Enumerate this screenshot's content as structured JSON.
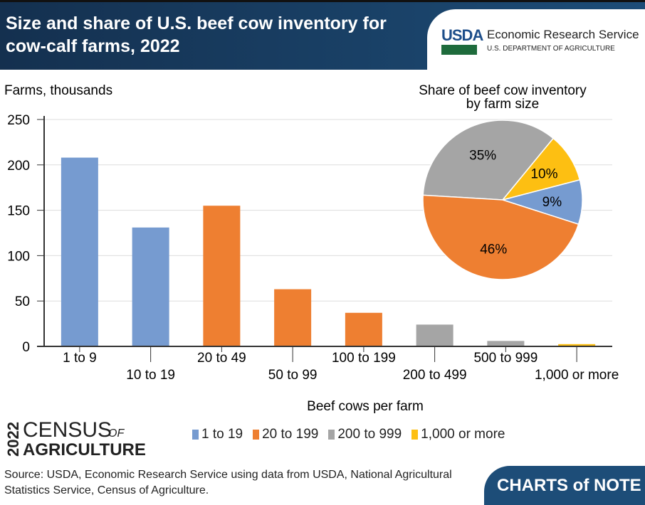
{
  "header": {
    "title": "Size and share of U.S. beef cow inventory for cow-calf farms, 2022",
    "org_abbr": "USDA",
    "org_name": "Economic Research Service",
    "dept": "U.S. DEPARTMENT OF AGRICULTURE"
  },
  "chart_data": [
    {
      "type": "bar",
      "ylabel": "Farms, thousands",
      "xlabel": "Beef cows per farm",
      "ylim": [
        0,
        250
      ],
      "yticks": [
        0,
        50,
        100,
        150,
        200,
        250
      ],
      "grid": true,
      "categories": [
        "1 to 9",
        "10 to 19",
        "20 to 49",
        "50 to 99",
        "100 to 199",
        "200 to 499",
        "500 to 999",
        "1,000 or more"
      ],
      "values": [
        208,
        131,
        155,
        63,
        37,
        24,
        6,
        2.5
      ],
      "groups": [
        "1 to 19",
        "1 to 19",
        "20 to 199",
        "20 to 199",
        "20 to 199",
        "200 to 999",
        "200 to 999",
        "1,000 or more"
      ],
      "legend": [
        {
          "name": "1 to 19",
          "color": "#769bd0"
        },
        {
          "name": "20 to 199",
          "color": "#ee7f31"
        },
        {
          "name": "200 to 999",
          "color": "#a5a5a5"
        },
        {
          "name": "1,000 or more",
          "color": "#fdbf12"
        }
      ],
      "legend_placement": "bottom"
    },
    {
      "type": "pie",
      "title": "Share of beef cow inventory by farm size",
      "slices": [
        {
          "name": "1 to 19",
          "value": 9,
          "label": "9%",
          "color": "#769bd0"
        },
        {
          "name": "20 to 199",
          "value": 46,
          "label": "46%",
          "color": "#ee7f31"
        },
        {
          "name": "200 to 999",
          "value": 35,
          "label": "35%",
          "color": "#a5a5a5"
        },
        {
          "name": "1,000 or more",
          "value": 10,
          "label": "10%",
          "color": "#fdbf12"
        }
      ]
    }
  ],
  "pie_title_lines": [
    "Share of beef cow inventory",
    "by farm size"
  ],
  "census": {
    "year": "2022",
    "line1": "CENSUS",
    "of": "OF",
    "line2": "AGRICULTURE"
  },
  "source": "Source: USDA, Economic Research Service using data from USDA, National Agricultural Statistics Service, Census of Agriculture.",
  "brand": "CHARTS of NOTE"
}
